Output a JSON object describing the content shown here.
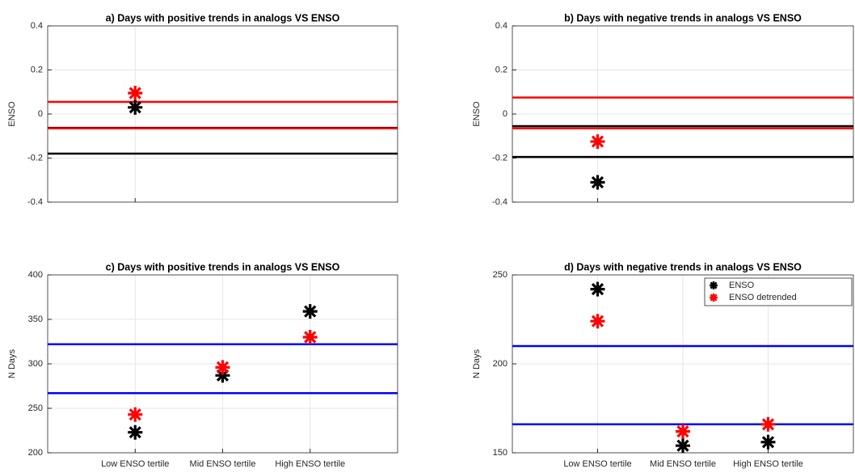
{
  "chart_data": [
    {
      "type": "scatter",
      "title": "a) Days with positive trends in analogs VS ENSO",
      "ylabel": "ENSO",
      "xlim": [
        0,
        4
      ],
      "xticks": [
        1
      ],
      "xtick_labels": false,
      "ylim": [
        -0.4,
        0.4
      ],
      "yticks": [
        -0.4,
        -0.2,
        0,
        0.2,
        0.4
      ],
      "grid": true,
      "series": [
        {
          "color": "#000000",
          "x": [
            1
          ],
          "values": [
            0.03
          ]
        },
        {
          "color": "#ff0000",
          "x": [
            1
          ],
          "values": [
            0.095
          ]
        }
      ],
      "hlines": [
        {
          "value": -0.18,
          "color": "#000000"
        },
        {
          "value": -0.063,
          "color": "#000000"
        },
        {
          "value": 0.055,
          "color": "#ff0000"
        },
        {
          "value": -0.065,
          "color": "#ff0000"
        }
      ]
    },
    {
      "type": "scatter",
      "title": "b) Days with negative trends in analogs VS ENSO",
      "ylabel": "ENSO",
      "xlim": [
        0,
        4
      ],
      "xticks": [
        1
      ],
      "xtick_labels": false,
      "ylim": [
        -0.4,
        0.4
      ],
      "yticks": [
        -0.4,
        -0.2,
        0,
        0.2,
        0.4
      ],
      "grid": true,
      "series": [
        {
          "color": "#000000",
          "x": [
            1
          ],
          "values": [
            -0.31
          ]
        },
        {
          "color": "#ff0000",
          "x": [
            1
          ],
          "values": [
            -0.125
          ]
        }
      ],
      "hlines": [
        {
          "value": -0.055,
          "color": "#000000"
        },
        {
          "value": -0.195,
          "color": "#000000"
        },
        {
          "value": 0.075,
          "color": "#ff0000"
        },
        {
          "value": -0.065,
          "color": "#ff0000"
        }
      ]
    },
    {
      "type": "scatter",
      "title": "c) Days with positive trends in analogs VS ENSO",
      "ylabel": "N Days",
      "xlim": [
        0,
        4
      ],
      "xticks": [
        {
          "value": 1,
          "label": "Low ENSO tertile"
        },
        {
          "value": 2,
          "label": "Mid ENSO tertile"
        },
        {
          "value": 3,
          "label": "High ENSO tertile"
        }
      ],
      "xtick_labels": true,
      "ylim": [
        200,
        400
      ],
      "yticks": [
        200,
        250,
        300,
        350,
        400
      ],
      "grid": true,
      "series": [
        {
          "color": "#000000",
          "x": [
            1,
            2,
            3
          ],
          "values": [
            223,
            287,
            359
          ]
        },
        {
          "color": "#ff0000",
          "x": [
            1,
            2,
            3
          ],
          "values": [
            243,
            296,
            330
          ]
        }
      ],
      "hlines": [
        {
          "value": 322,
          "color": "#0000ff"
        },
        {
          "value": 267,
          "color": "#0000ff"
        }
      ]
    },
    {
      "type": "scatter",
      "title": "d) Days with negative trends in analogs VS ENSO",
      "ylabel": "N Days",
      "xlim": [
        0,
        4
      ],
      "xticks": [
        {
          "value": 1,
          "label": "Low ENSO tertile"
        },
        {
          "value": 2,
          "label": "Mid ENSO tertile"
        },
        {
          "value": 3,
          "label": "High ENSO tertile"
        }
      ],
      "xtick_labels": true,
      "ylim": [
        150,
        250
      ],
      "yticks": [
        150,
        200,
        250
      ],
      "grid": true,
      "legend": "northeast",
      "series": [
        {
          "name": "ENSO",
          "color": "#000000",
          "x": [
            1,
            2,
            3
          ],
          "values": [
            242,
            154,
            156
          ]
        },
        {
          "name": "ENSO detrended",
          "color": "#ff0000",
          "x": [
            1,
            2,
            3
          ],
          "values": [
            224,
            162,
            166
          ]
        }
      ],
      "hlines": [
        {
          "value": 210,
          "color": "#0000ff"
        },
        {
          "value": 166,
          "color": "#0000ff"
        }
      ]
    }
  ]
}
